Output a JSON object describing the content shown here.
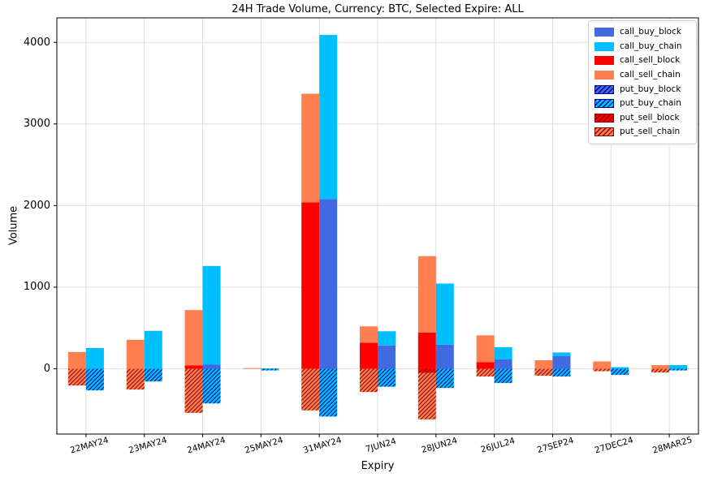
{
  "chart_data": {
    "type": "bar",
    "stacked": true,
    "title": "24H Trade Volume, Currency: BTC, Selected Expire: ALL",
    "xlabel": "Expiry",
    "ylabel": "Volume",
    "ylim": [
      -800,
      4300
    ],
    "yticks": [
      0,
      1000,
      2000,
      3000,
      4000
    ],
    "grid": true,
    "legend_position": "upper right",
    "categories": [
      "22MAY24",
      "23MAY24",
      "24MAY24",
      "25MAY24",
      "31MAY24",
      "7JUN24",
      "28JUN24",
      "26JUL24",
      "27SEP24",
      "27DEC24",
      "28MAR25"
    ],
    "series": [
      {
        "name": "call_buy_block",
        "color": "#4169E1",
        "hatch": false,
        "hatch_color": null,
        "bar": "buy",
        "direction": "up",
        "values": [
          0,
          0,
          50,
          0,
          2080,
          285,
          295,
          115,
          155,
          0,
          0
        ]
      },
      {
        "name": "call_buy_chain",
        "color": "#00BFFF",
        "hatch": false,
        "hatch_color": null,
        "bar": "buy",
        "direction": "up",
        "values": [
          255,
          465,
          1210,
          5,
          2010,
          175,
          750,
          150,
          45,
          20,
          45
        ]
      },
      {
        "name": "call_sell_block",
        "color": "#FF0000",
        "hatch": false,
        "hatch_color": null,
        "bar": "sell",
        "direction": "up",
        "values": [
          0,
          0,
          40,
          0,
          2040,
          320,
          445,
          80,
          0,
          0,
          0
        ]
      },
      {
        "name": "call_sell_chain",
        "color": "#FF7F50",
        "hatch": false,
        "hatch_color": null,
        "bar": "sell",
        "direction": "up",
        "values": [
          205,
          355,
          680,
          10,
          1330,
          200,
          935,
          330,
          105,
          90,
          45
        ]
      },
      {
        "name": "put_buy_block",
        "color": "#4169E1",
        "hatch": true,
        "hatch_color": "#00008B",
        "bar": "buy",
        "direction": "down",
        "values": [
          0,
          0,
          0,
          0,
          0,
          0,
          0,
          0,
          0,
          0,
          0
        ]
      },
      {
        "name": "put_buy_chain",
        "color": "#00BFFF",
        "hatch": true,
        "hatch_color": "#00008B",
        "bar": "buy",
        "direction": "down",
        "values": [
          265,
          155,
          425,
          20,
          585,
          220,
          235,
          175,
          95,
          75,
          20
        ]
      },
      {
        "name": "put_sell_block",
        "color": "#FF0000",
        "hatch": true,
        "hatch_color": "#8B0000",
        "bar": "sell",
        "direction": "down",
        "values": [
          0,
          0,
          0,
          0,
          0,
          0,
          50,
          0,
          0,
          0,
          0
        ]
      },
      {
        "name": "put_sell_chain",
        "color": "#FF7F50",
        "hatch": true,
        "hatch_color": "#8B0000",
        "bar": "sell",
        "direction": "down",
        "values": [
          205,
          255,
          540,
          0,
          510,
          285,
          570,
          95,
          85,
          30,
          45
        ]
      }
    ]
  }
}
